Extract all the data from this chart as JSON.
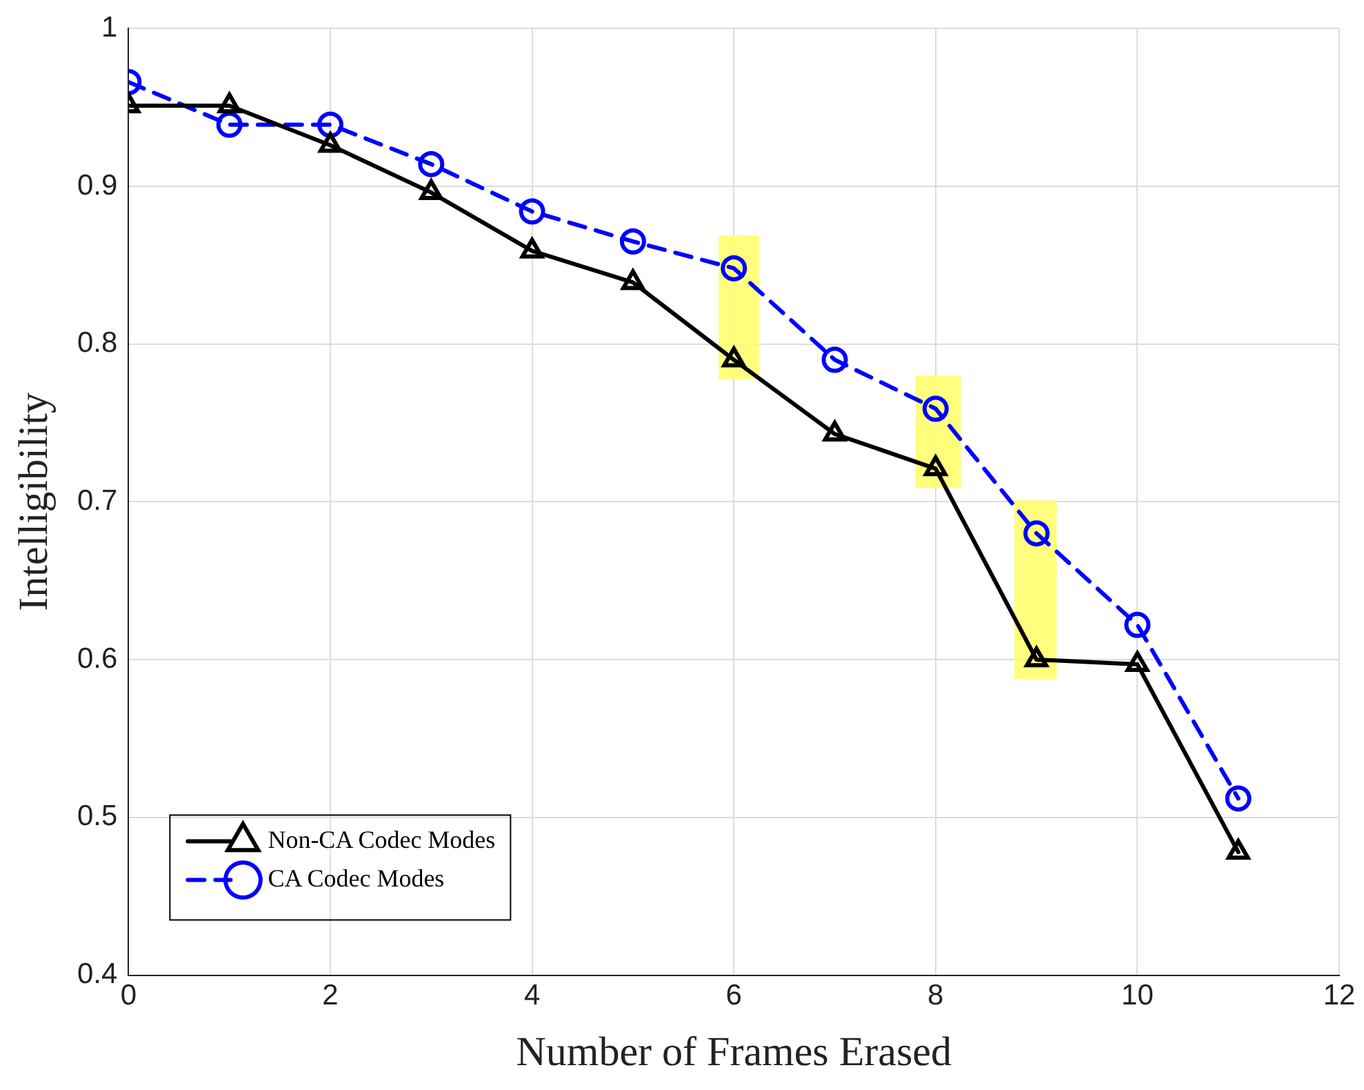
{
  "chart_data": {
    "type": "line",
    "xlabel": "Number of Frames Erased",
    "ylabel": "Intelligibility",
    "x": [
      0,
      1,
      2,
      3,
      4,
      5,
      6,
      7,
      8,
      9,
      10,
      11
    ],
    "series": [
      {
        "name": "Non-CA Codec Modes",
        "color": "#000000",
        "marker": "triangle",
        "line_style": "solid",
        "values": [
          0.951,
          0.951,
          0.926,
          0.896,
          0.859,
          0.839,
          0.79,
          0.743,
          0.721,
          0.6,
          0.597,
          0.478
        ]
      },
      {
        "name": "CA Codec Modes",
        "color": "#0000ff",
        "marker": "circle",
        "line_style": "dashed",
        "values": [
          0.966,
          0.939,
          0.939,
          0.914,
          0.884,
          0.865,
          0.848,
          0.79,
          0.759,
          0.68,
          0.622,
          0.512
        ]
      }
    ],
    "bands": [
      {
        "axis": "x",
        "from": 5.85,
        "to": 6.25,
        "color": "#ffff66"
      },
      {
        "axis": "x",
        "from": 7.8,
        "to": 8.25,
        "color": "#ffff66"
      },
      {
        "axis": "x",
        "from": 8.78,
        "to": 9.2,
        "color": "#ffff66"
      }
    ],
    "xlim": [
      0,
      12
    ],
    "xticks": [
      0,
      2,
      4,
      6,
      8,
      10,
      12
    ],
    "ylim": [
      0.4,
      1
    ],
    "yticks": [
      0.4,
      0.5,
      0.6,
      0.7,
      0.8,
      0.9,
      1
    ],
    "grid": true,
    "legend": "bottom left"
  }
}
